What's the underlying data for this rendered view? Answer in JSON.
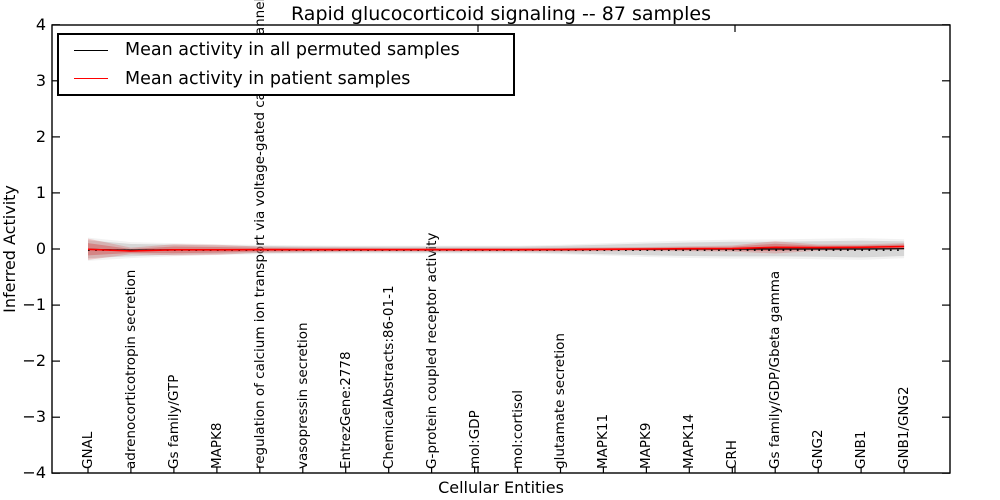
{
  "figure": {
    "title": "Rapid glucocorticoid signaling -- 87 samples",
    "xlabel": "Cellular Entities",
    "ylabel": "Inferred Activity"
  },
  "legend": {
    "entries": [
      {
        "label": "Mean activity in all permuted samples",
        "color": "#000000"
      },
      {
        "label": "Mean activity in patient samples",
        "color": "#ff0000"
      }
    ]
  },
  "chart_data": {
    "type": "line",
    "title": "Rapid glucocorticoid signaling -- 87 samples",
    "xlabel": "Cellular Entities",
    "ylabel": "Inferred Activity",
    "ylim": [
      -4,
      4
    ],
    "ytick_labels": [
      "4",
      "3",
      "2",
      "1",
      "0",
      "−1",
      "−2",
      "−3",
      "−4"
    ],
    "yticks": [
      4,
      3,
      2,
      1,
      0,
      -1,
      -2,
      -3,
      -4
    ],
    "grid": false,
    "legend_position": "upper left",
    "x_tick_rotation": 90,
    "categories": [
      "GNAL",
      "adrenocorticotropin secretion",
      "Gs family/GTP",
      "MAPK8",
      "regulation of calcium ion transport via voltage-gated calcium channels",
      "vasopressin secretion",
      "EntrezGene:2778",
      "ChemicalAbstracts:86-01-1",
      "G-protein coupled receptor activity",
      "mol:GDP",
      "mol:cortisol",
      "glutamate secretion",
      "MAPK11",
      "MAPK9",
      "MAPK14",
      "CRH",
      "Gs family/GDP/Gbeta gamma",
      "GNG2",
      "GNB1",
      "GNB1/GNG2"
    ],
    "series": [
      {
        "name": "Mean activity in all permuted samples",
        "color": "#000000",
        "style": "solid with dotted point markers",
        "values": [
          -0.005,
          -0.02,
          -0.012,
          -0.012,
          -0.01,
          -0.01,
          -0.01,
          -0.01,
          -0.01,
          -0.01,
          -0.01,
          -0.01,
          -0.008,
          -0.006,
          -0.004,
          -0.002,
          0,
          0,
          0,
          0.005
        ]
      },
      {
        "name": "Mean activity in patient samples",
        "color": "#ff0000",
        "style": "solid",
        "values": [
          -0.005,
          -0.035,
          -0.015,
          -0.015,
          -0.012,
          -0.012,
          -0.012,
          -0.012,
          -0.012,
          -0.012,
          -0.012,
          -0.01,
          -0.005,
          0,
          0.005,
          0.008,
          0.03,
          0.025,
          0.03,
          0.045
        ]
      }
    ],
    "bands": [
      {
        "name": "permuted samples spread",
        "color": "#aaaaaa",
        "opacity": 0.38,
        "follows_series": 0,
        "half_widths": [
          0.16,
          0.11,
          0.09,
          0.075,
          0.065,
          0.06,
          0.055,
          0.055,
          0.055,
          0.055,
          0.055,
          0.065,
          0.085,
          0.105,
          0.12,
          0.13,
          0.13,
          0.14,
          0.15,
          0.13
        ]
      },
      {
        "name": "patient samples spread outer",
        "color": "#d83333",
        "opacity": 0.22,
        "follows_series": 1,
        "half_widths": [
          0.19,
          0.06,
          0.1,
          0.09,
          0.055,
          0.045,
          0.04,
          0.035,
          0.035,
          0.035,
          0.035,
          0.035,
          0.035,
          0.035,
          0.045,
          0.055,
          0.11,
          0.055,
          0.05,
          0.06
        ]
      },
      {
        "name": "patient samples spread inner",
        "color": "#d21f1f",
        "opacity": 0.3,
        "follows_series": 1,
        "half_widths": [
          0.11,
          0.035,
          0.06,
          0.05,
          0.032,
          0.027,
          0.024,
          0.022,
          0.022,
          0.022,
          0.022,
          0.022,
          0.022,
          0.022,
          0.027,
          0.033,
          0.065,
          0.033,
          0.03,
          0.036
        ]
      }
    ],
    "marker_count": 115
  }
}
